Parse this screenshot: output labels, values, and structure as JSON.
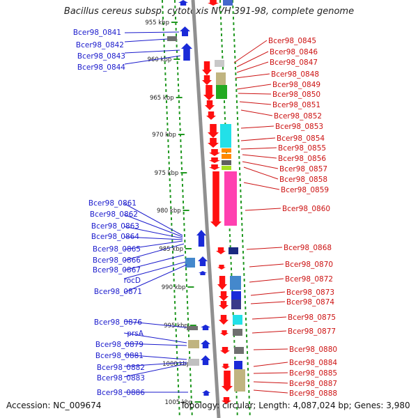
{
  "title": "Bacillus cereus subsp. cytotoxis NVH 391-98, complete genome",
  "footer": {
    "accession": "Accession: NC_009674",
    "topology": "Topology: circular; Length: 4,087,024 bp; Genes: 3,980"
  },
  "colors": {
    "left_label": "#1a1acc",
    "right_label": "#cc1111",
    "axis": "#909090",
    "dots": "#229922"
  },
  "kbp_ticks": [
    "955 kbp",
    "960 kbp",
    "965 kbp",
    "970 kbp",
    "975 kbp",
    "980 kbp",
    "985 kbp",
    "990 kbp",
    "995 kbp",
    "1000 kbp",
    "1005 kbp"
  ],
  "left_labels": [
    "Bcer98_0841",
    "Bcer98_0842",
    "Bcer98_0843",
    "Bcer98_0844",
    "Bcer98_0861",
    "Bcer98_0862",
    "Bcer98_0863",
    "Bcer98_0864",
    "Bcer98_0865",
    "Bcer98_0866",
    "Bcer98_0867",
    "rocD",
    "Bcer98_0871",
    "Bcer98_0876",
    "prsA",
    "Bcer98_0879",
    "Bcer98_0881",
    "Bcer98_0882",
    "Bcer98_0883",
    "Bcer98_0886"
  ],
  "right_labels": [
    "Bcer98_0845",
    "Bcer98_0846",
    "Bcer98_0847",
    "Bcer98_0848",
    "Bcer98_0849",
    "Bcer98_0850",
    "Bcer98_0851",
    "Bcer98_0852",
    "Bcer98_0853",
    "Bcer98_0854",
    "Bcer98_0855",
    "Bcer98_0856",
    "Bcer98_0857",
    "Bcer98_0858",
    "Bcer98_0859",
    "Bcer98_0860",
    "Bcer98_0868",
    "Bcer98_0870",
    "Bcer98_0872",
    "Bcer98_0873",
    "Bcer98_0874",
    "Bcer98_0875",
    "Bcer98_0877",
    "Bcer98_0880",
    "Bcer98_0884",
    "Bcer98_0885",
    "Bcer98_0887",
    "Bcer98_0888"
  ]
}
